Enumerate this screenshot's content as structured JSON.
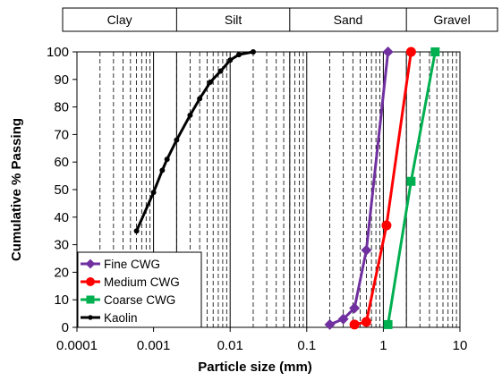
{
  "chart_data": {
    "type": "line",
    "xlabel": "Particle size (mm)",
    "ylabel": "Cumulative % Passing",
    "x_scale": "log",
    "xlim": [
      0.0001,
      10
    ],
    "ylim": [
      0,
      100
    ],
    "x_ticks": [
      "0.0001",
      "0.001",
      "0.01",
      "0.1",
      "1",
      "10"
    ],
    "y_ticks": [
      "0",
      "10",
      "20",
      "30",
      "40",
      "50",
      "60",
      "70",
      "80",
      "90",
      "100"
    ],
    "grid": "vertical log gridlines",
    "legend_position": "bottom-left",
    "soil_classes": [
      {
        "label": "Clay",
        "from": 0.0001,
        "to": 0.002
      },
      {
        "label": "Silt",
        "from": 0.002,
        "to": 0.06
      },
      {
        "label": "Sand",
        "from": 0.06,
        "to": 2
      },
      {
        "label": "Gravel",
        "from": 2,
        "to": 10
      }
    ],
    "series": [
      {
        "name": "Fine CWG",
        "color": "#7030a0",
        "marker": "diamond",
        "x": [
          0.2,
          0.3,
          0.42,
          0.6,
          1.15
        ],
        "y": [
          1,
          3,
          7,
          28,
          100
        ]
      },
      {
        "name": "Medium CWG",
        "color": "#ff0000",
        "marker": "circle",
        "x": [
          0.42,
          0.6,
          1.1,
          2.3
        ],
        "y": [
          1,
          2,
          37,
          100
        ]
      },
      {
        "name": "Coarse CWG",
        "color": "#00b050",
        "marker": "square",
        "x": [
          1.15,
          2.3,
          4.75
        ],
        "y": [
          1,
          53,
          100
        ]
      },
      {
        "name": "Kaolin",
        "color": "#000000",
        "marker": "dot",
        "x": [
          0.0006,
          0.001,
          0.0013,
          0.0015,
          0.002,
          0.003,
          0.004,
          0.0055,
          0.0075,
          0.01,
          0.013,
          0.02
        ],
        "y": [
          35,
          49,
          57,
          61,
          68,
          77,
          83,
          89,
          93,
          97,
          99,
          100
        ]
      }
    ]
  }
}
